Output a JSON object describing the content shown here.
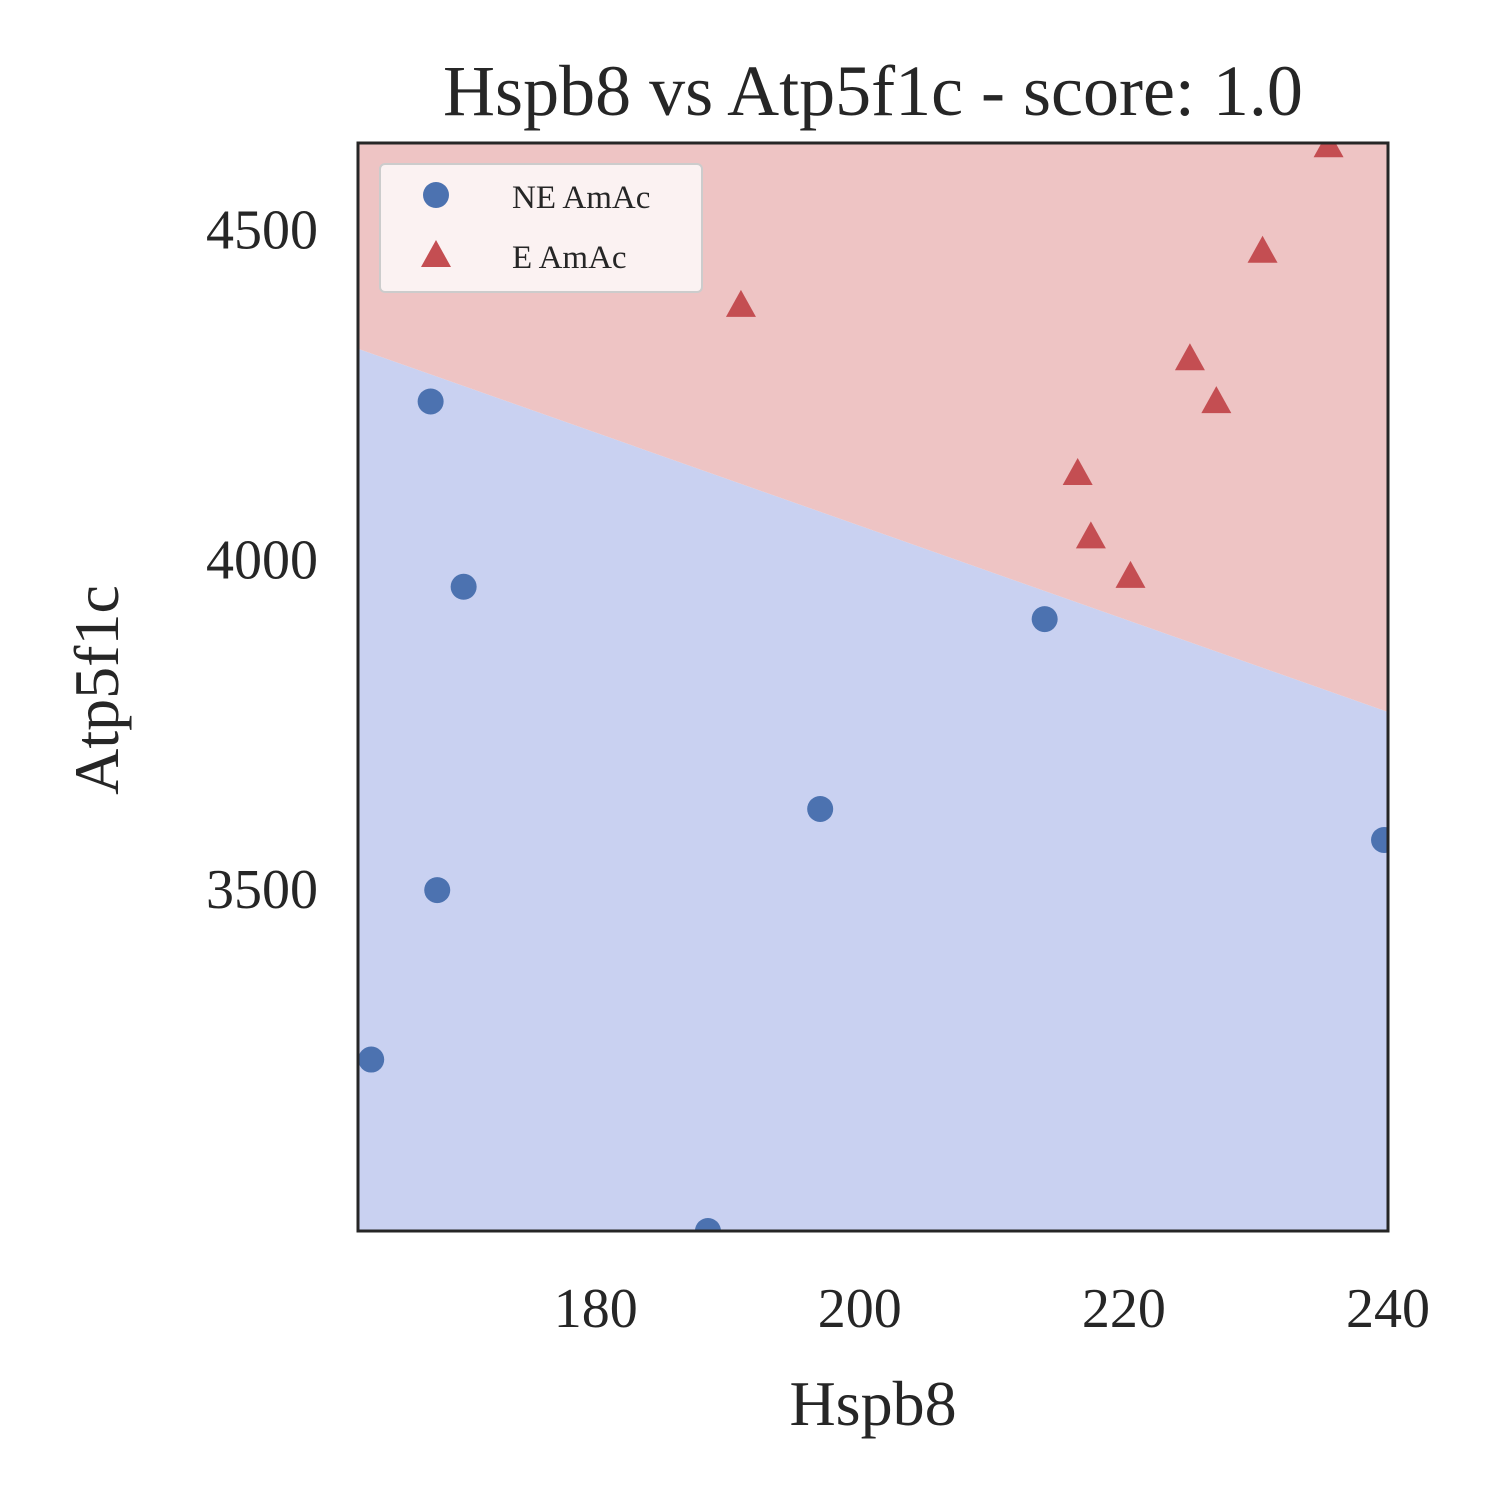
{
  "chart_data": {
    "type": "scatter",
    "title": "Hspb8 vs Atp5f1c - score: 1.0",
    "xlabel": "Hspb8",
    "ylabel": "Atp5f1c",
    "xlim": [
      162,
      240
    ],
    "ylim": [
      2980,
      4630
    ],
    "x_ticks": [
      180,
      200,
      220,
      240
    ],
    "x_tick_labels": [
      "180",
      "200",
      "220",
      "240"
    ],
    "y_ticks": [
      3500,
      4000,
      4500
    ],
    "y_tick_labels": [
      "3500",
      "4000",
      "4500"
    ],
    "grid": false,
    "legend_position": "top-left",
    "decision_boundary": {
      "x": [
        162,
        240
      ],
      "y": [
        4318,
        3767
      ],
      "region_above_color": "#eec4c4",
      "region_below_color": "#c9d1f1"
    },
    "series": [
      {
        "name": "NE AmAc",
        "marker": "circle",
        "color": "#4c72b0",
        "points": [
          [
            163,
            3240
          ],
          [
            167.5,
            4238
          ],
          [
            168,
            3497
          ],
          [
            170,
            3957
          ],
          [
            188.5,
            2980
          ],
          [
            197,
            3620
          ],
          [
            214,
            3908
          ],
          [
            239.7,
            3573
          ]
        ]
      },
      {
        "name": "E AmAc",
        "marker": "triangle",
        "color": "#c44e52",
        "points": [
          [
            191,
            4383
          ],
          [
            216.5,
            4128
          ],
          [
            217.5,
            4032
          ],
          [
            220.5,
            3972
          ],
          [
            225,
            4302
          ],
          [
            227,
            4237
          ],
          [
            230.5,
            4465
          ],
          [
            235.5,
            4625
          ]
        ]
      }
    ]
  }
}
